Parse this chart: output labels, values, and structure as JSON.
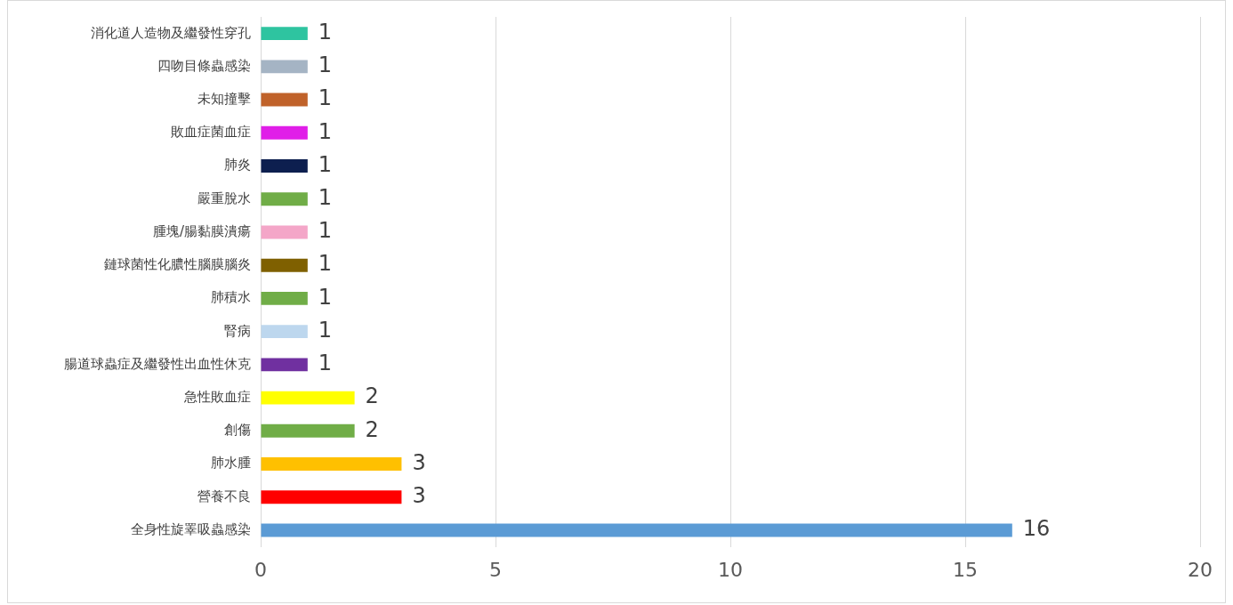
{
  "chart_data": {
    "type": "bar",
    "orientation": "horizontal",
    "categories": [
      "消化道人造物及繼發性穿孔",
      "四吻目條蟲感染",
      "未知撞擊",
      "敗血症菌血症",
      "肺炎",
      "嚴重脫水",
      "腫塊/腸黏膜潰瘍",
      "鏈球菌性化膿性腦膜腦炎",
      "肺積水",
      "腎病",
      "腸道球蟲症及繼發性出血性休克",
      "急性敗血症",
      "創傷",
      "肺水腫",
      "營養不良",
      "全身性旋睪吸蟲感染"
    ],
    "values": [
      1,
      1,
      1,
      1,
      1,
      1,
      1,
      1,
      1,
      1,
      1,
      2,
      2,
      3,
      3,
      16
    ],
    "colors": [
      "#2ec4a0",
      "#a5b4c4",
      "#c0622a",
      "#e01ee8",
      "#0d1f4f",
      "#70ad47",
      "#f4a6c8",
      "#7f6000",
      "#70ad47",
      "#bdd7ee",
      "#7030a0",
      "#ffff00",
      "#70ad47",
      "#ffc000",
      "#ff0000",
      "#5b9bd5"
    ],
    "xlim": [
      0,
      20
    ],
    "xticks": [
      0,
      5,
      10,
      15,
      20
    ],
    "grid": "x",
    "data_labels": true,
    "legend": false
  }
}
